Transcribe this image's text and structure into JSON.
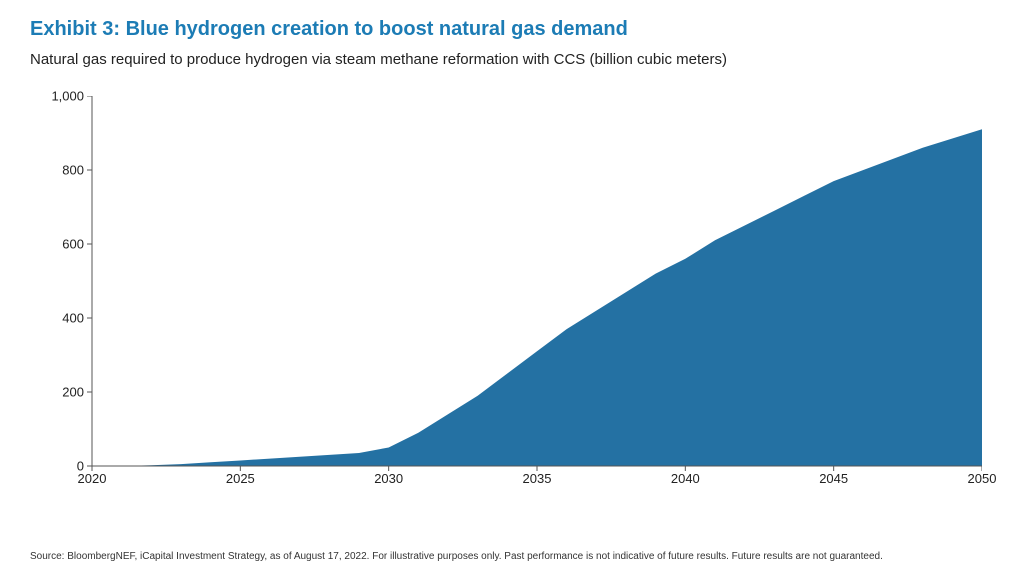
{
  "title": {
    "text": "Exhibit 3: Blue hydrogen creation to boost natural gas demand",
    "color": "#1c7cb5",
    "fontsize": 20,
    "fontweight": 700
  },
  "subtitle": {
    "text": "Natural gas required to produce hydrogen via steam methane reformation with CCS (billion cubic meters)",
    "color": "#222222",
    "fontsize": 15
  },
  "chart": {
    "type": "area",
    "background_color": "#ffffff",
    "fill_color": "#2471a3",
    "axis_color": "#555555",
    "axis_width": 1,
    "xlim": [
      2020,
      2050
    ],
    "ylim": [
      0,
      1000
    ],
    "x_ticks": [
      2020,
      2025,
      2030,
      2035,
      2040,
      2045,
      2050
    ],
    "y_ticks": [
      0,
      200,
      400,
      600,
      800,
      1000
    ],
    "y_tick_labels": [
      "0",
      "200",
      "400",
      "600",
      "800",
      "1,000"
    ],
    "tick_fontsize": 13,
    "tick_color": "#222222",
    "x": [
      2020,
      2021,
      2022,
      2023,
      2024,
      2025,
      2026,
      2027,
      2028,
      2029,
      2030,
      2031,
      2032,
      2033,
      2034,
      2035,
      2036,
      2037,
      2038,
      2039,
      2040,
      2041,
      2042,
      2043,
      2044,
      2045,
      2046,
      2047,
      2048,
      2049,
      2050
    ],
    "y": [
      0,
      0,
      2,
      5,
      10,
      15,
      20,
      25,
      30,
      35,
      50,
      90,
      140,
      190,
      250,
      310,
      370,
      420,
      470,
      520,
      560,
      610,
      650,
      690,
      730,
      770,
      800,
      830,
      860,
      885,
      910
    ]
  },
  "source": {
    "text": "Source: BloombergNEF, iCapital Investment Strategy, as of August 17, 2022. For illustrative purposes only. Past performance is not indicative of future results. Future results are not guaranteed.",
    "fontsize": 10,
    "color": "#333333"
  }
}
